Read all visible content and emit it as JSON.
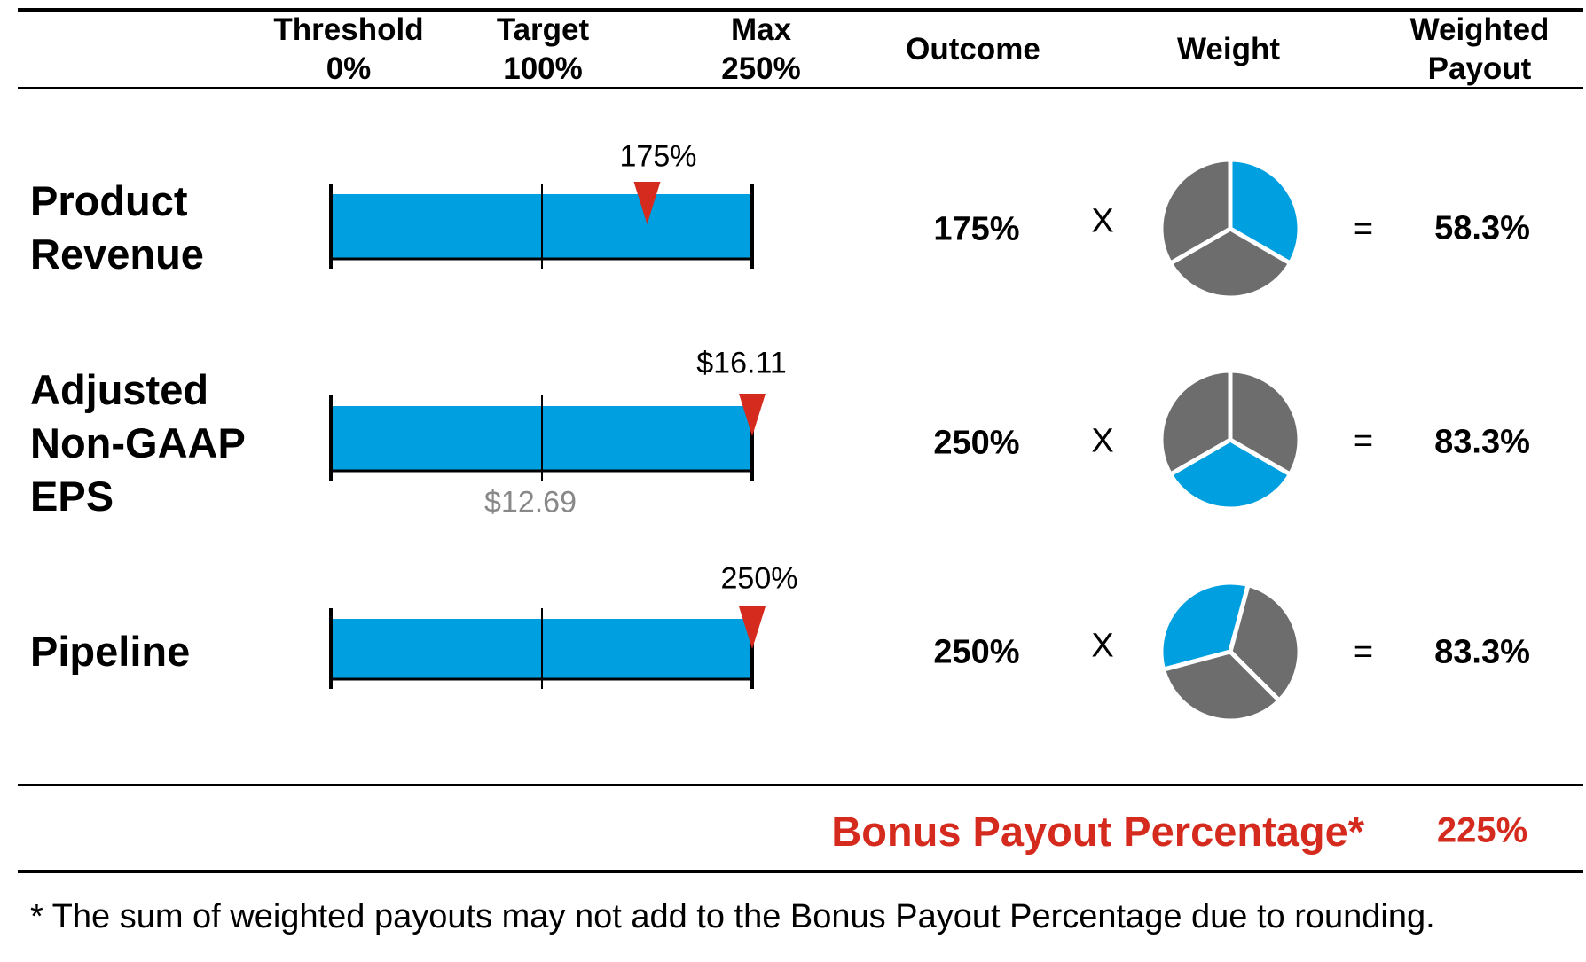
{
  "header": {
    "threshold": {
      "line1": "Threshold",
      "line2": "0%"
    },
    "target": {
      "line1": "Target",
      "line2": "100%"
    },
    "max": {
      "line1": "Max",
      "line2": "250%"
    },
    "outcome": "Outcome",
    "weight": "Weight",
    "weighted_payout": {
      "line1": "Weighted",
      "line2": "Payout"
    }
  },
  "colors": {
    "bar": "#009fdf",
    "marker": "#d52b1e",
    "pie_gray": "#6d6d6d",
    "accent_red": "#d52b1e",
    "target_label": "#888888"
  },
  "rows": [
    {
      "label_lines": [
        "Product",
        "Revenue"
      ],
      "marker_label": "175%",
      "target_label": "",
      "outcome": "175%",
      "times": "X",
      "equals": "=",
      "weighted_payout": "58.3%"
    },
    {
      "label_lines": [
        "Adjusted",
        "Non-GAAP",
        "EPS"
      ],
      "marker_label": "$16.11",
      "target_label": "$12.69",
      "outcome": "250%",
      "times": "X",
      "equals": "=",
      "weighted_payout": "83.3%"
    },
    {
      "label_lines": [
        "Pipeline"
      ],
      "marker_label": "250%",
      "target_label": "",
      "outcome": "250%",
      "times": "X",
      "equals": "=",
      "weighted_payout": "83.3%"
    }
  ],
  "total": {
    "label": "Bonus Payout Percentage*",
    "value": "225%"
  },
  "footnote": "* The sum of weighted payouts may not add to the Bonus Payout Percentage due to rounding.",
  "chart_data": {
    "type": "bar",
    "categories": [
      "Product Revenue",
      "Adjusted Non-GAAP EPS",
      "Pipeline"
    ],
    "scale_ticks": [
      {
        "label": "Threshold",
        "value": 0
      },
      {
        "label": "Target",
        "value": 100
      },
      {
        "label": "Max",
        "value": 250
      }
    ],
    "outcome_percent": [
      175,
      250,
      250
    ],
    "weights": [
      0.3333,
      0.3333,
      0.3333
    ],
    "weight_slice_position": [
      "top-right",
      "bottom",
      "top-left"
    ],
    "weighted_payout_percent": [
      58.3,
      83.3,
      83.3
    ],
    "bonus_payout_percent": 225
  }
}
